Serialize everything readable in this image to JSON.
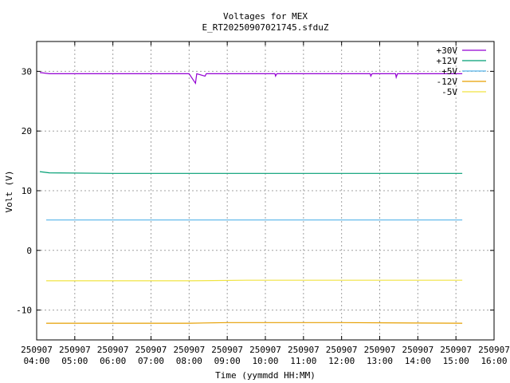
{
  "chart_data": {
    "type": "line",
    "title": "Voltages for MEX",
    "subtitle": "E_RT20250907021745.sfduZ",
    "xlabel": "Time (yymmdd HH:MM)",
    "ylabel": "Volt (V)",
    "x_ticks": [
      {
        "date": "250907",
        "time": "04:00"
      },
      {
        "date": "250907",
        "time": "05:00"
      },
      {
        "date": "250907",
        "time": "06:00"
      },
      {
        "date": "250907",
        "time": "07:00"
      },
      {
        "date": "250907",
        "time": "08:00"
      },
      {
        "date": "250907",
        "time": "09:00"
      },
      {
        "date": "250907",
        "time": "10:00"
      },
      {
        "date": "250907",
        "time": "11:00"
      },
      {
        "date": "250907",
        "time": "12:00"
      },
      {
        "date": "250907",
        "time": "13:00"
      },
      {
        "date": "250907",
        "time": "14:00"
      },
      {
        "date": "250907",
        "time": "15:00"
      },
      {
        "date": "250907",
        "time": "16:00"
      }
    ],
    "y_ticks": [
      -10,
      0,
      10,
      20,
      30
    ],
    "xlim": [
      "250907 04:00",
      "250907 16:00"
    ],
    "ylim": [
      -15,
      35
    ],
    "grid": true,
    "legend_position": "top-right",
    "series": [
      {
        "name": "+30V",
        "color": "#9400d3",
        "points": [
          [
            "250907 04:05",
            29.8
          ],
          [
            "250907 04:20",
            29.6
          ],
          [
            "250907 06:00",
            29.6
          ],
          [
            "250907 08:00",
            29.6
          ],
          [
            "250907 08:10",
            28.0
          ],
          [
            "250907 08:12",
            29.6
          ],
          [
            "250907 08:25",
            29.2
          ],
          [
            "250907 08:27",
            29.6
          ],
          [
            "250907 10:15",
            29.6
          ],
          [
            "250907 10:16",
            29.2
          ],
          [
            "250907 10:18",
            29.6
          ],
          [
            "250907 12:45",
            29.6
          ],
          [
            "250907 12:46",
            29.2
          ],
          [
            "250907 12:48",
            29.6
          ],
          [
            "250907 13:25",
            29.6
          ],
          [
            "250907 13:26",
            29.0
          ],
          [
            "250907 13:28",
            29.6
          ],
          [
            "250907 15:10",
            29.6
          ]
        ]
      },
      {
        "name": "+12V",
        "color": "#009e73",
        "points": [
          [
            "250907 04:05",
            13.2
          ],
          [
            "250907 04:20",
            13.0
          ],
          [
            "250907 06:00",
            12.9
          ],
          [
            "250907 10:00",
            12.9
          ],
          [
            "250907 15:10",
            12.9
          ]
        ]
      },
      {
        "name": "+5V",
        "color": "#56b4e9",
        "points": [
          [
            "250907 04:15",
            5.1
          ],
          [
            "250907 08:00",
            5.1
          ],
          [
            "250907 12:00",
            5.1
          ],
          [
            "250907 15:10",
            5.1
          ]
        ]
      },
      {
        "name": "-12V",
        "color": "#e69f00",
        "points": [
          [
            "250907 04:15",
            -12.2
          ],
          [
            "250907 08:00",
            -12.2
          ],
          [
            "250907 09:00",
            -12.1
          ],
          [
            "250907 12:00",
            -12.1
          ],
          [
            "250907 15:10",
            -12.2
          ]
        ]
      },
      {
        "name": "-5V",
        "color": "#f0e442",
        "points": [
          [
            "250907 04:15",
            -5.1
          ],
          [
            "250907 08:00",
            -5.1
          ],
          [
            "250907 09:30",
            -5.0
          ],
          [
            "250907 12:00",
            -5.0
          ],
          [
            "250907 15:10",
            -5.0
          ]
        ]
      }
    ]
  }
}
